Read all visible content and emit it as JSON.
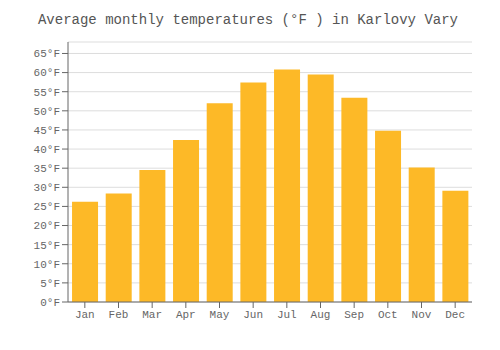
{
  "chart_data": {
    "type": "bar",
    "title": "Average monthly temperatures (°F ) in Karlovy Vary",
    "categories": [
      "Jan",
      "Feb",
      "Mar",
      "Apr",
      "May",
      "Jun",
      "Jul",
      "Aug",
      "Sep",
      "Oct",
      "Nov",
      "Dec"
    ],
    "values": [
      26.2,
      28.4,
      34.5,
      42.4,
      52.0,
      57.4,
      60.8,
      59.5,
      53.4,
      44.8,
      35.2,
      29.1
    ],
    "color": "#FDB927",
    "ylim": [
      0,
      68
    ],
    "yticks": [
      {
        "value": 0,
        "label": "0°F"
      },
      {
        "value": 5,
        "label": "5°F"
      },
      {
        "value": 10,
        "label": "10°F"
      },
      {
        "value": 15,
        "label": "15°F"
      },
      {
        "value": 20,
        "label": "20°F"
      },
      {
        "value": 25,
        "label": "25°F"
      },
      {
        "value": 30,
        "label": "30°F"
      },
      {
        "value": 35,
        "label": "35°F"
      },
      {
        "value": 40,
        "label": "40°F"
      },
      {
        "value": 45,
        "label": "45°F"
      },
      {
        "value": 50,
        "label": "50°F"
      },
      {
        "value": 55,
        "label": "55°F"
      },
      {
        "value": 60,
        "label": "60°F"
      },
      {
        "value": 65,
        "label": "65°F"
      }
    ],
    "grid": true
  }
}
